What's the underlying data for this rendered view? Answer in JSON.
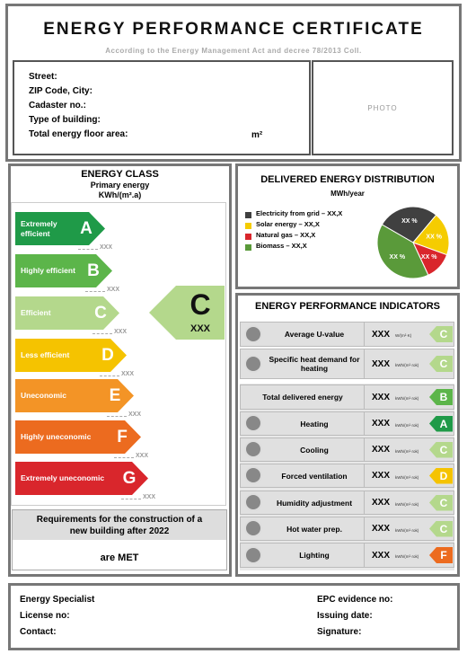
{
  "header": {
    "title": "ENERGY PERFORMANCE CERTIFICATE",
    "subtitle": "According to the Energy Management Act and decree 78/2013 Coll."
  },
  "property": {
    "fields": [
      "Street:",
      "ZIP Code, City:",
      "Cadaster no.:",
      "Type of building:",
      "Total energy floor area:"
    ],
    "area_unit": "m²",
    "photo": "PHOTO"
  },
  "energy_class": {
    "title": "ENERGY CLASS",
    "subtitle": "Primary energy",
    "unit": "KWh/(m².a)",
    "classes": [
      {
        "letter": "A",
        "label": "Extremely efficient",
        "limit": "XXX",
        "color": "#1f9a48"
      },
      {
        "letter": "B",
        "label": "Highly efficient",
        "limit": "XXX",
        "color": "#5cb54a"
      },
      {
        "letter": "C",
        "label": "Efficient",
        "limit": "XXX",
        "color": "#b4d88c"
      },
      {
        "letter": "D",
        "label": "Less efficient",
        "limit": "XXX",
        "color": "#f5c300"
      },
      {
        "letter": "E",
        "label": "Uneconomic",
        "limit": "XXX",
        "color": "#f39426"
      },
      {
        "letter": "F",
        "label": "Highly uneconomic",
        "limit": "XXX",
        "color": "#ec6b1f"
      },
      {
        "letter": "G",
        "label": "Extremely uneconomic",
        "limit": "XXX",
        "color": "#d9262c"
      }
    ],
    "rating": {
      "letter": "C",
      "value": "XXX"
    },
    "requirements": {
      "text": "Requirements for the construction of a new building after 2022",
      "result": "are MET"
    }
  },
  "distribution": {
    "title": "DELIVERED ENERGY DISTRIBUTION",
    "unit": "MWh/year",
    "items": [
      {
        "label": "Electricity from grid – XX,X",
        "share": "XX %",
        "color": "#404040"
      },
      {
        "label": "Solar energy – XX,X",
        "share": "XX %",
        "color": "#f5cc00"
      },
      {
        "label": "Natural gas – XX,X",
        "share": "XX %",
        "color": "#d9262c"
      },
      {
        "label": "Biomass – XX,X",
        "share": "XX %",
        "color": "#5a9a3a"
      }
    ]
  },
  "indicators": {
    "title": "ENERGY PERFORMANCE INDICATORS",
    "rows": [
      {
        "label": "Average U-value",
        "value": "XXX",
        "unit": "W/(m²·K)",
        "class": "C"
      },
      {
        "label": "Specific heat demand for heating",
        "value": "XXX",
        "unit": "kWh/(m²·rok)",
        "class": "C"
      },
      {
        "label": "Total delivered energy",
        "value": "XXX",
        "unit": "kWh/(m²·rok)",
        "class": "B"
      },
      {
        "label": "Heating",
        "value": "XXX",
        "unit": "kWh/(m²·rok)",
        "class": "A"
      },
      {
        "label": "Cooling",
        "value": "XXX",
        "unit": "kWh/(m²·rok)",
        "class": "C"
      },
      {
        "label": "Forced ventilation",
        "value": "XXX",
        "unit": "kWh/(m²·rok)",
        "class": "D"
      },
      {
        "label": "Humidity adjustment",
        "value": "XXX",
        "unit": "kWh/(m²·rok)",
        "class": "C"
      },
      {
        "label": "Hot water prep.",
        "value": "XXX",
        "unit": "kWh/(m²·rok)",
        "class": "C"
      },
      {
        "label": "Lighting",
        "value": "XXX",
        "unit": "kWh/(m²·rok)",
        "class": "F"
      }
    ]
  },
  "footer": {
    "left": [
      "Energy Specialist",
      "License no:",
      "Contact:"
    ],
    "right": [
      "EPC evidence no:",
      "Issuing date:",
      "Signature:"
    ]
  }
}
